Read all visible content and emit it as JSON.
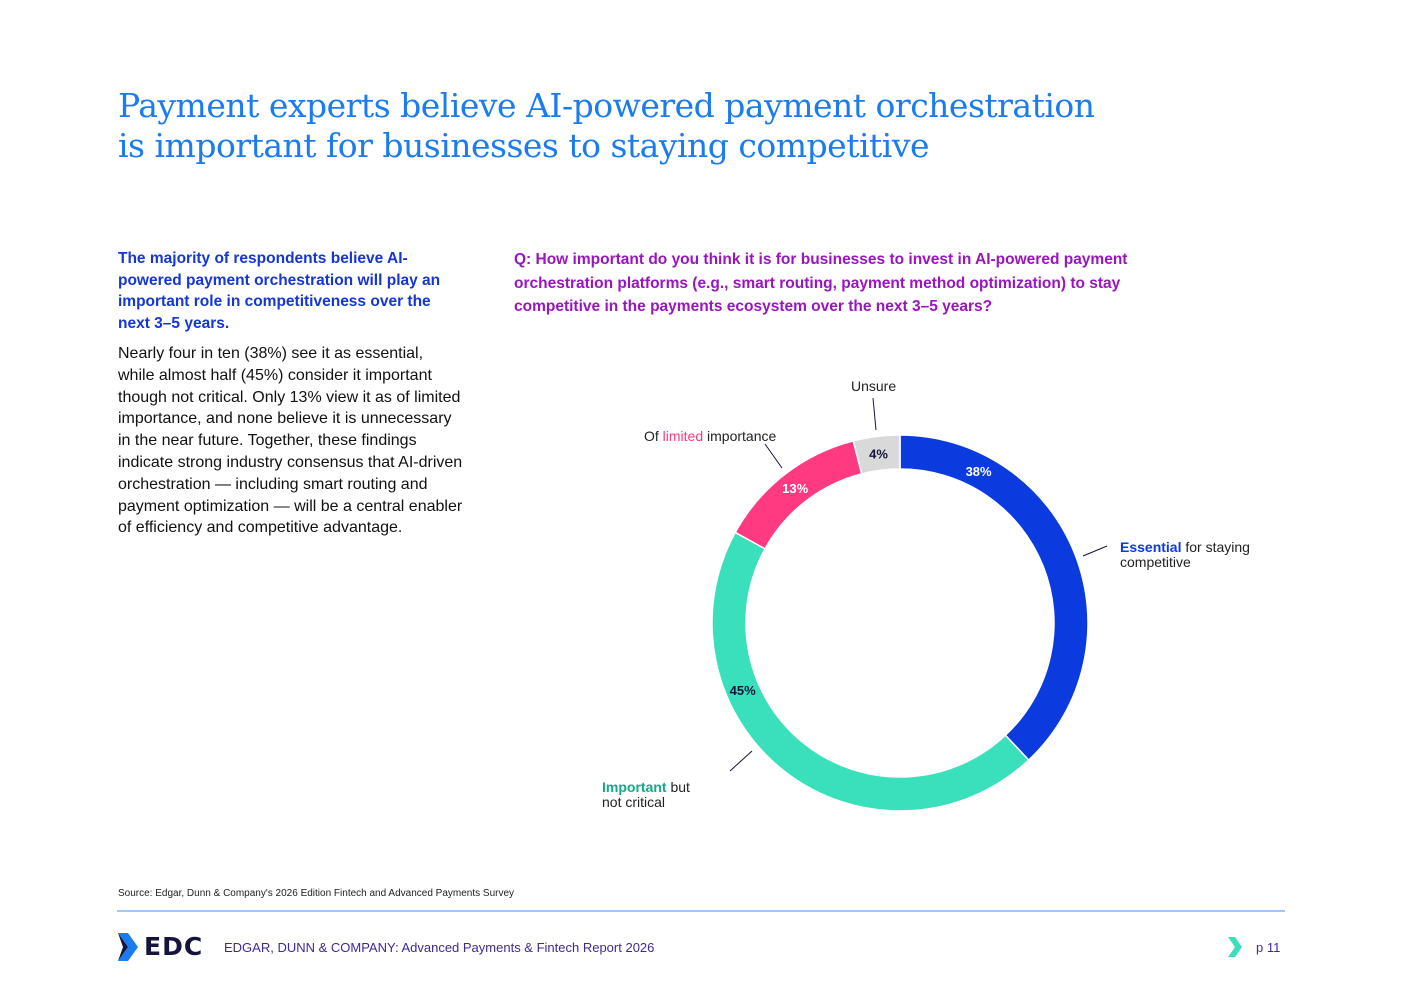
{
  "title_line1": "Payment experts believe AI-powered payment orchestration",
  "title_line2": "is important for businesses to staying competitive",
  "lead": "The majority of respondents believe AI-powered payment orchestration will play an important role in competitiveness over the next 3–5 years.",
  "body": "Nearly four in ten (38%) see it as essential, while almost half (45%) consider it important though not critical. Only 13% view it as of limited importance, and none believe it is unnecessary in the near future. Together, these findings indicate strong industry consensus that AI-driven orchestration — including smart routing and payment optimization — will be a central enabler of efficiency and competitive advantage.",
  "chart_data": {
    "type": "pie",
    "donut": true,
    "title": "Q: How important do you think it is for businesses to invest in AI-powered payment orchestration platforms (e.g., smart routing, payment method optimization) to stay competitive in the payments ecosystem over the next 3–5 years?",
    "slices": [
      {
        "name": "Essential for staying competitive",
        "highlight": "Essential",
        "rest": " for staying competitive",
        "value": 38,
        "label": "38%",
        "color": "#0b3ade",
        "label_color": "#ffffff"
      },
      {
        "name": "Important but not critical",
        "highlight": "Important",
        "rest": " but not critical",
        "value": 45,
        "label": "45%",
        "color": "#3ae0bc",
        "label_color": "#14143c"
      },
      {
        "name": "Of limited importance",
        "prefix": "Of ",
        "highlight": "limited",
        "rest": " importance",
        "value": 13,
        "label": "13%",
        "color": "#ff3a80",
        "label_color": "#ffffff"
      },
      {
        "name": "Unsure",
        "value": 4,
        "label": "4%",
        "color": "#d9d9d9",
        "label_color": "#14143c"
      }
    ],
    "highlight_colors": [
      "#0b3ade",
      "#14a88a",
      "#ff3a80"
    ]
  },
  "source": "Source: Edgar, Dunn & Company's 2026 Edition Fintech and Advanced Payments Survey",
  "footer": {
    "logo": "EDC",
    "text": "EDGAR, DUNN & COMPANY: Advanced Payments & Fintech Report 2026",
    "page": "p 11"
  }
}
